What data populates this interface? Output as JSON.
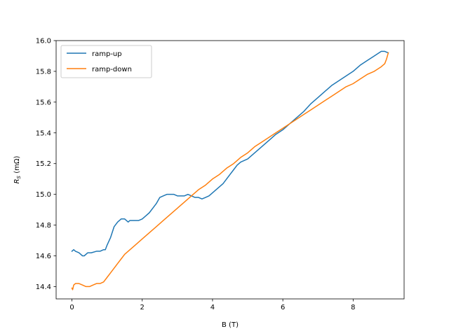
{
  "chart_data": {
    "type": "line",
    "xlabel": "B (T)",
    "ylabel": "R_S (mΩ)",
    "ylabel_main": "R",
    "ylabel_sub": "S",
    "ylabel_unit": " (mΩ)",
    "xlim": [
      -0.45,
      9.45
    ],
    "ylim": [
      14.32,
      16.0
    ],
    "xticks": [
      0,
      2,
      4,
      6,
      8
    ],
    "yticks": [
      14.4,
      14.6,
      14.8,
      15.0,
      15.2,
      15.4,
      15.6,
      15.8,
      16.0
    ],
    "xtick_labels": [
      "0",
      "2",
      "4",
      "6",
      "8"
    ],
    "ytick_labels": [
      "14.4",
      "14.6",
      "14.8",
      "15.0",
      "15.2",
      "15.4",
      "15.6",
      "15.8",
      "16.0"
    ],
    "grid": false,
    "legend_position": "upper-left",
    "series": [
      {
        "name": "ramp-up",
        "color": "#1f77b4",
        "x": [
          0.0,
          0.05,
          0.1,
          0.2,
          0.3,
          0.35,
          0.45,
          0.55,
          0.7,
          0.8,
          0.9,
          0.95,
          1.0,
          1.1,
          1.2,
          1.3,
          1.4,
          1.5,
          1.6,
          1.65,
          1.7,
          1.8,
          1.9,
          2.0,
          2.1,
          2.2,
          2.3,
          2.4,
          2.5,
          2.6,
          2.7,
          2.8,
          2.9,
          3.0,
          3.1,
          3.2,
          3.3,
          3.4,
          3.5,
          3.6,
          3.7,
          3.8,
          3.9,
          4.0,
          4.1,
          4.2,
          4.3,
          4.4,
          4.5,
          4.6,
          4.7,
          4.8,
          4.9,
          5.0,
          5.2,
          5.4,
          5.6,
          5.8,
          6.0,
          6.2,
          6.4,
          6.6,
          6.8,
          7.0,
          7.2,
          7.4,
          7.6,
          7.8,
          8.0,
          8.2,
          8.4,
          8.6,
          8.8,
          8.9,
          9.0
        ],
        "values": [
          14.63,
          14.64,
          14.63,
          14.62,
          14.6,
          14.6,
          14.62,
          14.62,
          14.63,
          14.63,
          14.64,
          14.64,
          14.67,
          14.72,
          14.79,
          14.82,
          14.84,
          14.84,
          14.82,
          14.83,
          14.83,
          14.83,
          14.83,
          14.84,
          14.86,
          14.88,
          14.91,
          14.94,
          14.98,
          14.99,
          15.0,
          15.0,
          15.0,
          14.99,
          14.99,
          14.99,
          15.0,
          14.99,
          14.98,
          14.98,
          14.97,
          14.98,
          14.99,
          15.01,
          15.03,
          15.05,
          15.07,
          15.1,
          15.13,
          15.16,
          15.19,
          15.21,
          15.22,
          15.23,
          15.27,
          15.31,
          15.35,
          15.39,
          15.42,
          15.46,
          15.5,
          15.54,
          15.59,
          15.63,
          15.67,
          15.71,
          15.74,
          15.77,
          15.8,
          15.84,
          15.87,
          15.9,
          15.93,
          15.93,
          15.92
        ]
      },
      {
        "name": "ramp-down",
        "color": "#ff7f0e",
        "x": [
          0.0,
          0.02,
          0.05,
          0.1,
          0.2,
          0.3,
          0.4,
          0.5,
          0.6,
          0.7,
          0.8,
          0.9,
          1.0,
          1.1,
          1.2,
          1.3,
          1.4,
          1.5,
          1.6,
          1.8,
          2.0,
          2.2,
          2.4,
          2.6,
          2.8,
          3.0,
          3.2,
          3.4,
          3.6,
          3.8,
          4.0,
          4.2,
          4.4,
          4.6,
          4.8,
          5.0,
          5.2,
          5.4,
          5.6,
          5.8,
          6.0,
          6.2,
          6.4,
          6.6,
          6.8,
          7.0,
          7.2,
          7.4,
          7.6,
          7.8,
          8.0,
          8.2,
          8.4,
          8.6,
          8.8,
          8.9,
          8.95,
          9.0
        ],
        "values": [
          14.39,
          14.38,
          14.41,
          14.42,
          14.42,
          14.41,
          14.4,
          14.4,
          14.41,
          14.42,
          14.42,
          14.43,
          14.46,
          14.49,
          14.52,
          14.55,
          14.58,
          14.61,
          14.63,
          14.67,
          14.71,
          14.75,
          14.79,
          14.83,
          14.87,
          14.91,
          14.95,
          14.99,
          15.03,
          15.06,
          15.1,
          15.13,
          15.17,
          15.2,
          15.24,
          15.27,
          15.31,
          15.34,
          15.37,
          15.4,
          15.43,
          15.46,
          15.49,
          15.52,
          15.55,
          15.58,
          15.61,
          15.64,
          15.67,
          15.7,
          15.72,
          15.75,
          15.78,
          15.8,
          15.83,
          15.85,
          15.88,
          15.92
        ]
      }
    ]
  }
}
